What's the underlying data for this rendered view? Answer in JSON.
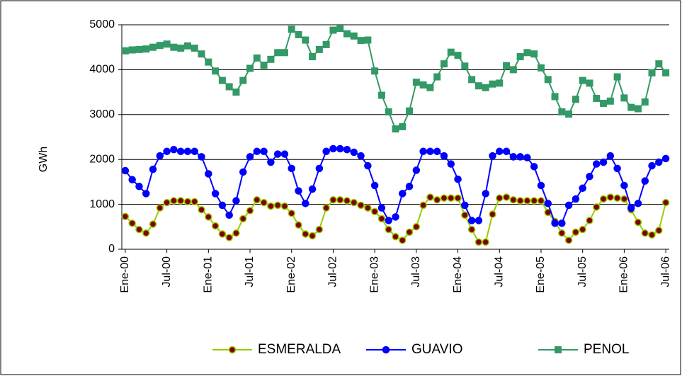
{
  "chart_data": {
    "type": "line",
    "ylabel": "GWh",
    "categories": [
      "Ene-00",
      null,
      null,
      null,
      null,
      null,
      "Jul-00",
      null,
      null,
      null,
      null,
      null,
      "Ene-01",
      null,
      null,
      null,
      null,
      null,
      "Jul-01",
      null,
      null,
      null,
      null,
      null,
      "Ene-02",
      null,
      null,
      null,
      null,
      null,
      "Jul-02",
      null,
      null,
      null,
      null,
      null,
      "Ene-03",
      null,
      null,
      null,
      null,
      null,
      "Jul-03",
      null,
      null,
      null,
      null,
      null,
      "Ene-04",
      null,
      null,
      null,
      null,
      null,
      "Jul-04",
      null,
      null,
      null,
      null,
      null,
      "Ene-05",
      null,
      null,
      null,
      null,
      null,
      "Jul-05",
      null,
      null,
      null,
      null,
      null,
      "Ene-06",
      null,
      null,
      null,
      null,
      null,
      "Jul-06"
    ],
    "ylim": [
      0,
      5000
    ],
    "yticks": [
      0,
      1000,
      2000,
      3000,
      4000,
      5000
    ],
    "grid": true,
    "legend": "bottom",
    "series": [
      {
        "name": "ESMERALDA",
        "color": "#99cc00",
        "marker": "circle",
        "marker_fill": "#800000",
        "values": [
          730,
          580,
          440,
          360,
          560,
          920,
          1040,
          1080,
          1080,
          1060,
          1060,
          880,
          720,
          520,
          340,
          260,
          360,
          680,
          860,
          1100,
          1040,
          960,
          980,
          960,
          800,
          540,
          340,
          300,
          440,
          920,
          1100,
          1100,
          1080,
          1040,
          980,
          920,
          840,
          680,
          440,
          280,
          200,
          380,
          500,
          980,
          1160,
          1100,
          1140,
          1140,
          1140,
          760,
          440,
          160,
          160,
          780,
          1140,
          1160,
          1100,
          1080,
          1080,
          1080,
          1080,
          820,
          620,
          360,
          200,
          380,
          440,
          640,
          940,
          1120,
          1160,
          1140,
          1120,
          880,
          600,
          360,
          320,
          420,
          1040
        ]
      },
      {
        "name": "GUAVIO",
        "color": "#0000ff",
        "marker": "circle",
        "marker_fill": "#0000ff",
        "values": [
          1750,
          1550,
          1400,
          1240,
          1780,
          2080,
          2180,
          2220,
          2180,
          2180,
          2180,
          2060,
          1680,
          1240,
          980,
          760,
          1080,
          1720,
          2060,
          2180,
          2180,
          1940,
          2120,
          2120,
          1800,
          1300,
          1020,
          1340,
          1800,
          2180,
          2240,
          2240,
          2220,
          2160,
          2080,
          1860,
          1420,
          920,
          640,
          720,
          1240,
          1400,
          1760,
          2180,
          2180,
          2180,
          2080,
          1900,
          1560,
          980,
          640,
          640,
          1240,
          2080,
          2180,
          2180,
          2060,
          2060,
          2040,
          1840,
          1420,
          1020,
          580,
          580,
          980,
          1120,
          1360,
          1620,
          1900,
          1940,
          2080,
          1800,
          1420,
          920,
          1020,
          1520,
          1860,
          1940,
          2020
        ]
      },
      {
        "name": "PENOL",
        "color": "#339966",
        "marker": "square",
        "marker_fill": "#339966",
        "values": [
          4420,
          4440,
          4450,
          4460,
          4500,
          4540,
          4570,
          4500,
          4480,
          4530,
          4480,
          4350,
          4170,
          3970,
          3760,
          3620,
          3500,
          3760,
          4030,
          4260,
          4100,
          4230,
          4380,
          4380,
          4900,
          4780,
          4660,
          4290,
          4450,
          4560,
          4880,
          4920,
          4800,
          4750,
          4650,
          4660,
          3970,
          3430,
          3060,
          2680,
          2730,
          3080,
          3720,
          3660,
          3600,
          3840,
          4130,
          4390,
          4320,
          4080,
          3780,
          3640,
          3600,
          3680,
          3700,
          4090,
          4000,
          4290,
          4380,
          4350,
          4040,
          3780,
          3400,
          3060,
          3010,
          3340,
          3760,
          3700,
          3360,
          3250,
          3300,
          3840,
          3370,
          3160,
          3130,
          3280,
          3930,
          4130,
          3930
        ]
      }
    ]
  }
}
